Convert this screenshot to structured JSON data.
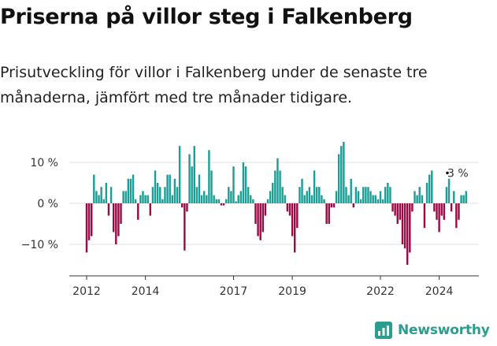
{
  "header": {
    "title": "Priserna på villor steg i Falkenberg",
    "subtitle": "Prisutveckling för villor i Falkenberg under de senaste tre månaderna, jämfört med tre månader tidigare."
  },
  "brand": {
    "name": "Newsworthy",
    "icon": "newsworthy-logo-icon",
    "color": "#2a9d8f"
  },
  "colors": {
    "positive": "#1a9e96",
    "negative": "#9b0a45",
    "grid": "#e3e3e3",
    "axis": "#333333"
  },
  "chart_data": {
    "type": "bar",
    "title": "Priserna på villor steg i Falkenberg",
    "xlabel": "",
    "ylabel": "",
    "ylim": [
      -17,
      17
    ],
    "xlim": [
      2011.6,
      2025.2
    ],
    "y_ticks": [
      10,
      0,
      -10
    ],
    "y_tick_labels": [
      "10 %",
      "0 %",
      "−10 %"
    ],
    "x_ticks": [
      2012,
      2014,
      2017,
      2019,
      2022,
      2024
    ],
    "x_tick_labels": [
      "2012",
      "2014",
      "2017",
      "2019",
      "2022",
      "2024"
    ],
    "grid": true,
    "annotation": {
      "label": "3 %",
      "value": 3
    },
    "x_start": 2012.0,
    "x_step": 0.0833333,
    "values": [
      -12.0,
      -9.0,
      -8.0,
      7.0,
      3.0,
      2.0,
      4.0,
      1.0,
      5.0,
      -3.0,
      4.0,
      -7.0,
      -10.0,
      -8.0,
      -5.0,
      3.0,
      3.0,
      6.0,
      6.0,
      7.0,
      1.0,
      -4.0,
      2.0,
      3.0,
      2.0,
      2.0,
      -3.0,
      4.0,
      8.0,
      5.0,
      4.0,
      1.0,
      4.0,
      7.0,
      7.0,
      2.0,
      6.0,
      4.0,
      14.0,
      -1.0,
      -11.5,
      -2.0,
      12.0,
      9.0,
      14.0,
      4.0,
      7.0,
      2.0,
      3.0,
      2.0,
      13.0,
      8.0,
      2.0,
      1.0,
      1.0,
      -0.5,
      -0.5,
      1.0,
      4.0,
      3.0,
      9.0,
      0.5,
      2.0,
      3.0,
      10.0,
      9.0,
      4.0,
      2.0,
      1.0,
      -5.0,
      -8.0,
      -9.0,
      -7.0,
      -3.0,
      1.0,
      3.0,
      5.0,
      8.0,
      11.0,
      8.0,
      4.0,
      2.0,
      -2.0,
      -3.0,
      -8.0,
      -12.0,
      -6.0,
      4.0,
      6.0,
      2.0,
      3.0,
      4.0,
      2.0,
      8.0,
      4.0,
      4.0,
      2.0,
      1.0,
      -5.0,
      -5.0,
      -1.0,
      -1.0,
      3.0,
      12.0,
      14.0,
      15.0,
      4.0,
      2.0,
      6.0,
      -1.0,
      4.0,
      3.0,
      1.0,
      4.0,
      4.0,
      4.0,
      3.0,
      2.0,
      2.0,
      1.0,
      3.0,
      1.0,
      4.0,
      5.0,
      4.0,
      -2.0,
      -3.0,
      -5.0,
      -4.0,
      -10.0,
      -11.0,
      -15.0,
      -12.0,
      -2.0,
      3.0,
      2.0,
      4.0,
      2.0,
      -6.0,
      5.0,
      7.0,
      8.0,
      -2.0,
      -4.0,
      -7.0,
      -3.0,
      -4.0,
      4.0,
      6.0,
      -2.0,
      3.0,
      -6.0,
      -4.0,
      2.0,
      2.0,
      3.0
    ]
  }
}
